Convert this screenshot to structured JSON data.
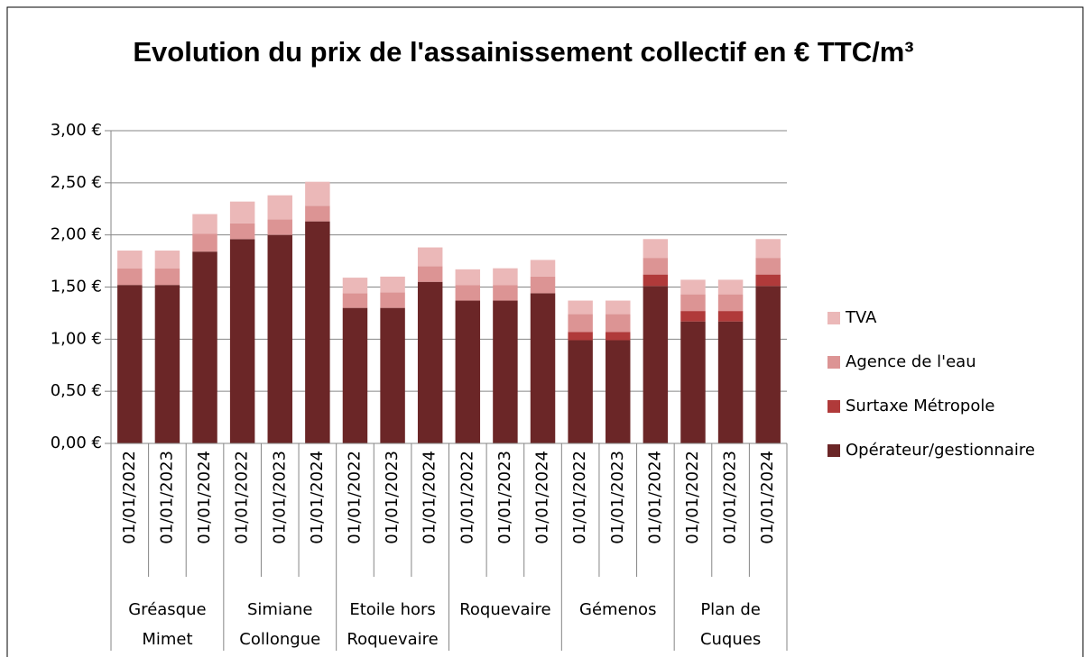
{
  "chart_data": {
    "type": "stacked_bar",
    "title": "Evolution du prix de l'assainissement collectif en € TTC/m³",
    "categories": [
      "01/01/2022",
      "01/01/2023",
      "01/01/2024",
      "01/01/2022",
      "01/01/2023",
      "01/01/2024",
      "01/01/2022",
      "01/01/2023",
      "01/01/2024",
      "01/01/2022",
      "01/01/2023",
      "01/01/2024",
      "01/01/2022",
      "01/01/2023",
      "01/01/2024",
      "01/01/2022",
      "01/01/2023",
      "01/01/2024"
    ],
    "groups": [
      "Gréasque Mimet",
      "Simiane Collongue",
      "Etoile hors Roquevaire",
      "Roquevaire",
      "Gémenos",
      "Plan de Cuques"
    ],
    "series": [
      {
        "name": "Opérateur/gestionnaire",
        "color": "#6b2627",
        "values": [
          1.52,
          1.52,
          1.84,
          1.96,
          2.0,
          2.13,
          1.3,
          1.3,
          1.55,
          1.37,
          1.37,
          1.44,
          0.99,
          0.99,
          1.51,
          1.17,
          1.17,
          1.51
        ]
      },
      {
        "name": "Surtaxe Métropole",
        "color": "#b03a3a",
        "values": [
          0,
          0,
          0,
          0,
          0,
          0,
          0,
          0,
          0,
          0,
          0,
          0,
          0.08,
          0.08,
          0.11,
          0.1,
          0.1,
          0.11
        ]
      },
      {
        "name": "Agence de l'eau",
        "color": "#dc9494",
        "values": [
          0.16,
          0.16,
          0.17,
          0.15,
          0.15,
          0.15,
          0.14,
          0.15,
          0.15,
          0.15,
          0.15,
          0.16,
          0.17,
          0.17,
          0.16,
          0.16,
          0.16,
          0.16
        ]
      },
      {
        "name": "TVA",
        "color": "#ebb8b8",
        "values": [
          0.17,
          0.17,
          0.19,
          0.21,
          0.23,
          0.23,
          0.15,
          0.15,
          0.18,
          0.15,
          0.16,
          0.16,
          0.13,
          0.13,
          0.18,
          0.14,
          0.14,
          0.18
        ]
      }
    ],
    "ylim": [
      0,
      3
    ],
    "yticks": [
      {
        "value": 0,
        "label": "0,00 €"
      },
      {
        "value": 0.5,
        "label": "0,50 €"
      },
      {
        "value": 1,
        "label": "1,00 €"
      },
      {
        "value": 1.5,
        "label": "1,50 €"
      },
      {
        "value": 2,
        "label": "2,00 €"
      },
      {
        "value": 2.5,
        "label": "2,50 €"
      },
      {
        "value": 3,
        "label": "3,00 €"
      }
    ],
    "grid": true,
    "legend": "right"
  }
}
